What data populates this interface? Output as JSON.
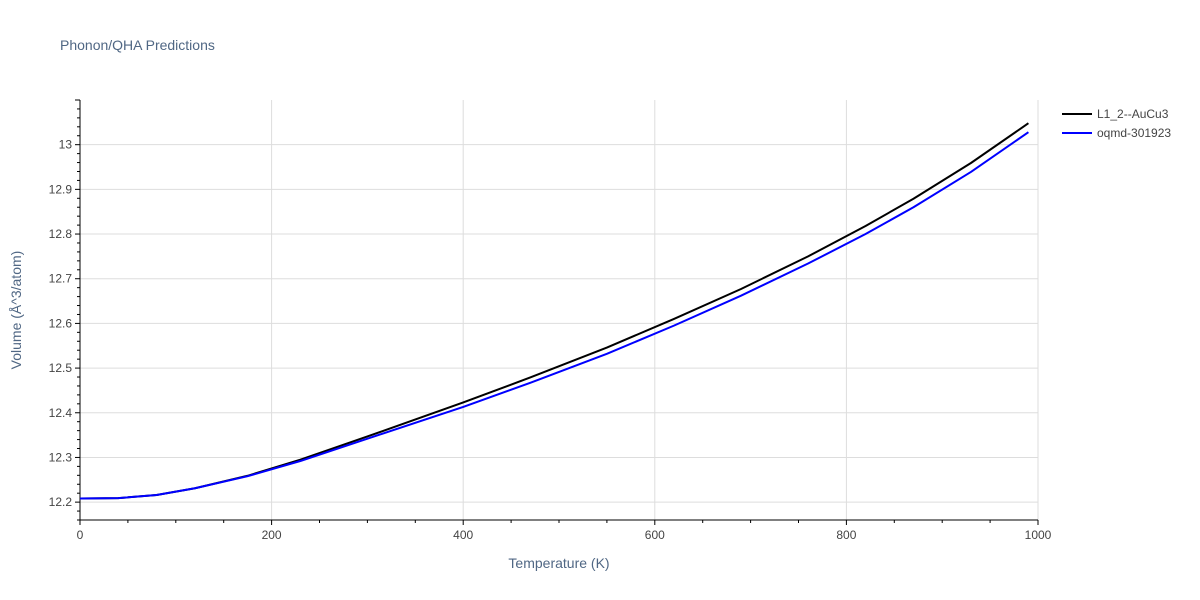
{
  "chart_data": {
    "type": "line",
    "title": "Phonon/QHA Predictions",
    "xlabel": "Temperature (K)",
    "ylabel": "Volume (Å^3/atom)",
    "xlim": [
      0,
      1000
    ],
    "ylim": [
      12.16,
      13.1
    ],
    "x_ticks": [
      0,
      200,
      400,
      600,
      800,
      1000
    ],
    "y_ticks": [
      12.2,
      12.3,
      12.4,
      12.5,
      12.6,
      12.7,
      12.8,
      12.9,
      13
    ],
    "grid": true,
    "legend_position": "top-right",
    "series": [
      {
        "name": "L1_2--AuCu3",
        "color": "#000000",
        "x": [
          0,
          40,
          80,
          120,
          175,
          230,
          300,
          400,
          470,
          550,
          620,
          690,
          760,
          820,
          870,
          930,
          990
        ],
        "y": [
          12.208,
          12.209,
          12.216,
          12.231,
          12.259,
          12.295,
          12.347,
          12.423,
          12.479,
          12.546,
          12.61,
          12.677,
          12.75,
          12.818,
          12.879,
          12.959,
          13.048
        ]
      },
      {
        "name": "oqmd-301923",
        "color": "#0000ff",
        "x": [
          0,
          40,
          80,
          120,
          175,
          230,
          300,
          400,
          470,
          550,
          620,
          690,
          760,
          820,
          870,
          930,
          990
        ],
        "y": [
          12.208,
          12.209,
          12.216,
          12.231,
          12.258,
          12.292,
          12.342,
          12.413,
          12.467,
          12.532,
          12.595,
          12.662,
          12.734,
          12.8,
          12.86,
          12.939,
          13.028
        ]
      }
    ]
  }
}
